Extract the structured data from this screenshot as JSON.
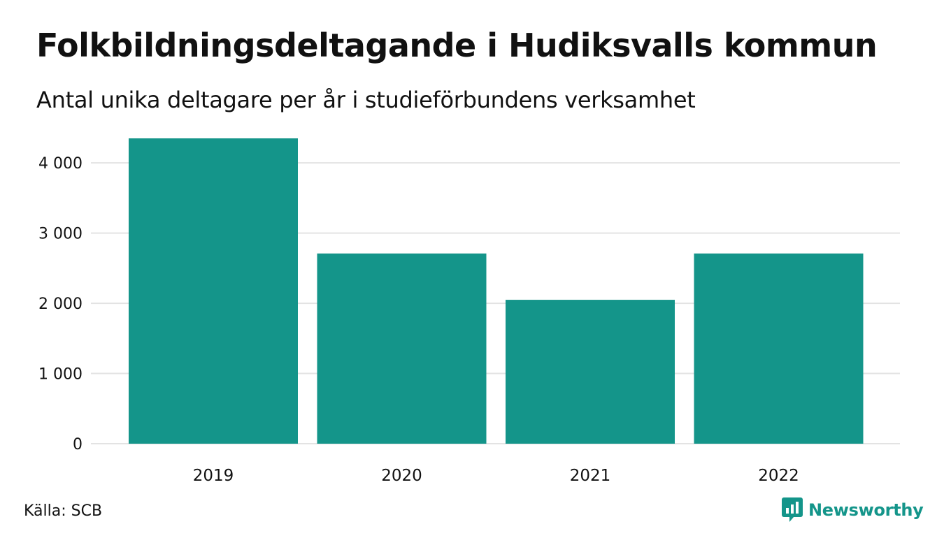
{
  "title": "Folkbildningsdeltagande i Hudiksvalls kommun",
  "subtitle": "Antal unika deltagare per år i studieförbundens verksamhet",
  "source": "Källa: SCB",
  "brand": {
    "name": "Newsworthy",
    "icon": "chart-speech-bubble-icon"
  },
  "colors": {
    "bar": "#14958a",
    "brand": "#14958a",
    "grid": "#e3e3e3",
    "text": "#111111"
  },
  "chart_data": {
    "type": "bar",
    "categories": [
      "2019",
      "2020",
      "2021",
      "2022"
    ],
    "values": [
      4350,
      2710,
      2050,
      2710
    ],
    "ylim": [
      0,
      4400
    ],
    "yticks": [
      0,
      1000,
      2000,
      3000,
      4000
    ],
    "ytick_labels": [
      "0",
      "1 000",
      "2 000",
      "3 000",
      "4 000"
    ],
    "grid": true,
    "legend": "none"
  }
}
